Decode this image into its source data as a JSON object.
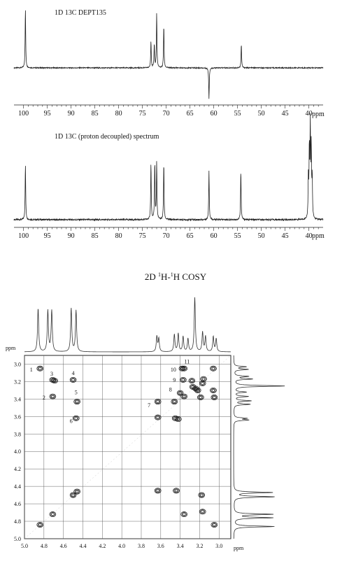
{
  "chart_data": [
    {
      "type": "line",
      "title": "1D 13C DEPT135",
      "xlabel": "ppm",
      "xlim": [
        102,
        37
      ],
      "x_reversed": true,
      "x_ticks": [
        100,
        95,
        90,
        85,
        80,
        75,
        70,
        65,
        60,
        55,
        50,
        45,
        40
      ],
      "grid": false,
      "peaks": [
        {
          "x": 99.6,
          "height": 1.0
        },
        {
          "x": 73.2,
          "height": 0.46
        },
        {
          "x": 72.5,
          "height": 0.4
        },
        {
          "x": 72.0,
          "height": 0.92
        },
        {
          "x": 70.5,
          "height": 0.72
        },
        {
          "x": 61.0,
          "height": -0.52
        },
        {
          "x": 54.2,
          "height": 0.4
        }
      ]
    },
    {
      "type": "line",
      "title": "1D 13C (proton decoupled) spectrum",
      "xlabel": "ppm",
      "xlim": [
        102,
        37
      ],
      "x_reversed": true,
      "x_ticks": [
        100,
        95,
        90,
        85,
        80,
        75,
        70,
        65,
        60,
        55,
        50,
        45,
        40
      ],
      "grid": false,
      "peaks": [
        {
          "x": 99.6,
          "height": 0.62
        },
        {
          "x": 73.2,
          "height": 0.64
        },
        {
          "x": 72.4,
          "height": 0.64
        },
        {
          "x": 72.0,
          "height": 0.64
        },
        {
          "x": 70.5,
          "height": 0.64
        },
        {
          "x": 61.0,
          "height": 0.55
        },
        {
          "x": 54.3,
          "height": 0.55
        },
        {
          "x": 40.1,
          "height": 0.45
        },
        {
          "x": 39.9,
          "height": 0.75
        },
        {
          "x": 39.7,
          "height": 1.0
        },
        {
          "x": 39.5,
          "height": 0.75
        },
        {
          "x": 39.3,
          "height": 0.45
        }
      ]
    },
    {
      "type": "heatmap",
      "title": "2D 1H-1H COSY",
      "title_parts": {
        "pre": "2D ",
        "sup1": "1",
        "mid": "H-",
        "sup2": "1",
        "post": "H COSY"
      },
      "xlabel": "ppm",
      "ylabel": "ppm",
      "xlim": [
        5.0,
        2.88
      ],
      "ylim": [
        2.9,
        5.0
      ],
      "x_ticks": [
        5.0,
        4.8,
        4.6,
        4.4,
        4.2,
        4.0,
        3.8,
        3.6,
        3.4,
        3.2,
        3.0
      ],
      "y_ticks": [
        3.0,
        3.2,
        3.4,
        3.6,
        3.8,
        4.0,
        4.2,
        4.4,
        4.6,
        4.8,
        5.0
      ],
      "grid": true,
      "proj_peaks": [
        {
          "x": 4.86,
          "h": 1.0
        },
        {
          "x": 4.76,
          "h": 0.95
        },
        {
          "x": 4.72,
          "h": 0.95
        },
        {
          "x": 4.52,
          "h": 1.0
        },
        {
          "x": 4.47,
          "h": 0.95
        },
        {
          "x": 3.64,
          "h": 0.35
        },
        {
          "x": 3.62,
          "h": 0.3
        },
        {
          "x": 3.46,
          "h": 0.4
        },
        {
          "x": 3.42,
          "h": 0.42
        },
        {
          "x": 3.37,
          "h": 0.35
        },
        {
          "x": 3.32,
          "h": 0.3
        },
        {
          "x": 3.25,
          "h": 1.25
        },
        {
          "x": 3.17,
          "h": 0.45
        },
        {
          "x": 3.14,
          "h": 0.35
        },
        {
          "x": 3.06,
          "h": 0.35
        },
        {
          "x": 3.03,
          "h": 0.3
        }
      ],
      "cross_peaks": [
        {
          "x": 4.84,
          "y": 3.05
        },
        {
          "x": 4.71,
          "y": 3.18
        },
        {
          "x": 4.69,
          "y": 3.19
        },
        {
          "x": 4.71,
          "y": 3.37
        },
        {
          "x": 4.5,
          "y": 3.18
        },
        {
          "x": 4.46,
          "y": 3.43
        },
        {
          "x": 4.47,
          "y": 3.62
        },
        {
          "x": 4.84,
          "y": 4.84
        },
        {
          "x": 4.71,
          "y": 4.72
        },
        {
          "x": 4.5,
          "y": 4.5
        },
        {
          "x": 4.46,
          "y": 4.46
        },
        {
          "x": 3.63,
          "y": 3.43
        },
        {
          "x": 3.63,
          "y": 3.61
        },
        {
          "x": 3.46,
          "y": 3.43
        },
        {
          "x": 3.45,
          "y": 3.62
        },
        {
          "x": 3.42,
          "y": 3.63
        },
        {
          "x": 3.38,
          "y": 3.05
        },
        {
          "x": 3.36,
          "y": 3.05
        },
        {
          "x": 3.37,
          "y": 3.18
        },
        {
          "x": 3.4,
          "y": 3.33
        },
        {
          "x": 3.36,
          "y": 3.37
        },
        {
          "x": 3.28,
          "y": 3.19
        },
        {
          "x": 3.27,
          "y": 3.26
        },
        {
          "x": 3.24,
          "y": 3.28
        },
        {
          "x": 3.22,
          "y": 3.3
        },
        {
          "x": 3.19,
          "y": 3.38
        },
        {
          "x": 3.17,
          "y": 3.22
        },
        {
          "x": 3.16,
          "y": 3.17
        },
        {
          "x": 3.06,
          "y": 3.05
        },
        {
          "x": 3.06,
          "y": 3.3
        },
        {
          "x": 3.05,
          "y": 3.38
        },
        {
          "x": 3.63,
          "y": 4.45
        },
        {
          "x": 3.44,
          "y": 4.45
        },
        {
          "x": 3.36,
          "y": 4.72
        },
        {
          "x": 3.18,
          "y": 4.5
        },
        {
          "x": 3.17,
          "y": 4.69
        },
        {
          "x": 3.05,
          "y": 4.84
        }
      ],
      "annotations": [
        {
          "label": "1",
          "x": 4.93,
          "y": 3.06
        },
        {
          "label": "2",
          "x": 4.8,
          "y": 3.38
        },
        {
          "label": "3",
          "x": 4.72,
          "y": 3.11
        },
        {
          "label": "4",
          "x": 4.5,
          "y": 3.1
        },
        {
          "label": "5",
          "x": 4.47,
          "y": 3.32
        },
        {
          "label": "6",
          "x": 4.52,
          "y": 3.65
        },
        {
          "label": "7",
          "x": 3.72,
          "y": 3.47
        },
        {
          "label": "8",
          "x": 3.5,
          "y": 3.29
        },
        {
          "label": "9",
          "x": 3.46,
          "y": 3.18
        },
        {
          "label": "10",
          "x": 3.47,
          "y": 3.06
        },
        {
          "label": "11",
          "x": 3.33,
          "y": 2.97
        }
      ]
    }
  ]
}
